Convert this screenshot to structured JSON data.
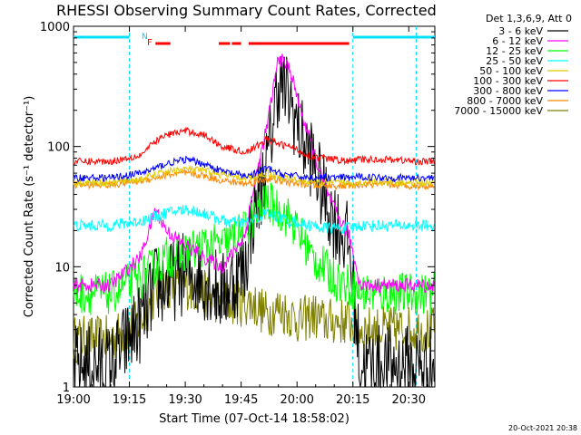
{
  "title": "RHESSI Observing Summary Count Rates, Corrected",
  "detector_info": "Det 1,3,6,9, Att 0",
  "footer_date": "20-Oct-2021 20:38",
  "flag_labels": {
    "n": "N",
    "f": "F"
  },
  "colors": {
    "3-6": "#000000",
    "6-12": "#ff00ff",
    "12-25": "#00ff00",
    "25-50": "#00ffff",
    "50-100": "#e0c800",
    "100-300": "#ff0000",
    "300-800": "#0000ff",
    "800-7000": "#ff8800",
    "7000-15000": "#808000"
  },
  "chart_data": {
    "type": "line",
    "title": "RHESSI Observing Summary Count Rates, Corrected",
    "xlabel": "Start Time (07-Oct-14 18:58:02)",
    "ylabel": "Corrected Count Rate (s⁻¹ detector⁻¹)",
    "yscale": "log",
    "ylim": [
      1,
      1000
    ],
    "xlim_minutes_after_1900": [
      0,
      97
    ],
    "x_ticks": [
      "19:00",
      "19:15",
      "19:30",
      "19:45",
      "20:00",
      "20:15",
      "20:30"
    ],
    "x_tick_minutes": [
      0,
      15,
      30,
      45,
      60,
      75,
      90
    ],
    "y_ticks": [
      "1",
      "10",
      "100",
      "1000"
    ],
    "y_tick_values": [
      1,
      10,
      100,
      1000
    ],
    "legend_position": "top-right",
    "x_minutes": [
      0,
      10,
      18,
      22,
      25,
      30,
      35,
      40,
      46,
      48,
      52,
      55,
      58,
      61,
      64,
      67,
      70,
      74,
      77,
      86,
      92
    ],
    "series": [
      {
        "name": "3 - 6 keV",
        "color_key": "3-6",
        "values": [
          1.5,
          1.5,
          3.5,
          7,
          7,
          9,
          8,
          6,
          10,
          25,
          70,
          350,
          250,
          120,
          80,
          40,
          25,
          15,
          1.5,
          1.5,
          1.5
        ]
      },
      {
        "name": "6 - 12 keV",
        "color_key": "6-12",
        "values": [
          7,
          7,
          12,
          30,
          20,
          15,
          12,
          10,
          18,
          40,
          150,
          550,
          450,
          200,
          100,
          50,
          30,
          18,
          7,
          7,
          7
        ]
      },
      {
        "name": "12 - 25 keV",
        "color_key": "12-25",
        "values": [
          6,
          6,
          8,
          10,
          12,
          13,
          15,
          15,
          20,
          25,
          35,
          30,
          25,
          18,
          12,
          10,
          8,
          7,
          6,
          6,
          6
        ]
      },
      {
        "name": "25 - 50 keV",
        "color_key": "25-50",
        "values": [
          22,
          22,
          24,
          26,
          28,
          30,
          28,
          24,
          23,
          24,
          28,
          26,
          24,
          23,
          22,
          21,
          21,
          21,
          22,
          22,
          22
        ]
      },
      {
        "name": "50 - 100 keV",
        "color_key": "50-100",
        "values": [
          50,
          50,
          53,
          58,
          62,
          65,
          63,
          58,
          54,
          55,
          60,
          56,
          54,
          52,
          51,
          50,
          50,
          50,
          50,
          50,
          50
        ]
      },
      {
        "name": "100 - 300 keV",
        "color_key": "100-300",
        "values": [
          75,
          75,
          85,
          110,
          125,
          135,
          125,
          100,
          90,
          95,
          115,
          105,
          100,
          90,
          82,
          80,
          78,
          75,
          78,
          78,
          75
        ]
      },
      {
        "name": "300 - 800 keV",
        "color_key": "300-800",
        "values": [
          55,
          55,
          60,
          66,
          72,
          78,
          72,
          62,
          57,
          58,
          66,
          60,
          58,
          56,
          55,
          55,
          55,
          55,
          56,
          55,
          55
        ]
      },
      {
        "name": "800 - 7000 keV",
        "color_key": "800-7000",
        "values": [
          48,
          48,
          52,
          55,
          58,
          60,
          57,
          52,
          49,
          50,
          54,
          52,
          50,
          49,
          48,
          47,
          47,
          47,
          48,
          48,
          47
        ]
      },
      {
        "name": "7000 - 15000 keV",
        "color_key": "7000-15000",
        "values": [
          2.5,
          2.5,
          3.5,
          6,
          7,
          7,
          6,
          5,
          5,
          5,
          4,
          4.5,
          4,
          3.5,
          4,
          3.5,
          3.5,
          3.5,
          3,
          3,
          3
        ]
      }
    ],
    "attenuator_flag_minutes": [
      [
        0,
        15
      ],
      [
        75,
        97
      ]
    ],
    "flare_flag_minutes": [
      [
        22,
        26
      ],
      [
        39,
        42
      ],
      [
        42.5,
        45
      ],
      [
        47,
        74
      ]
    ]
  }
}
